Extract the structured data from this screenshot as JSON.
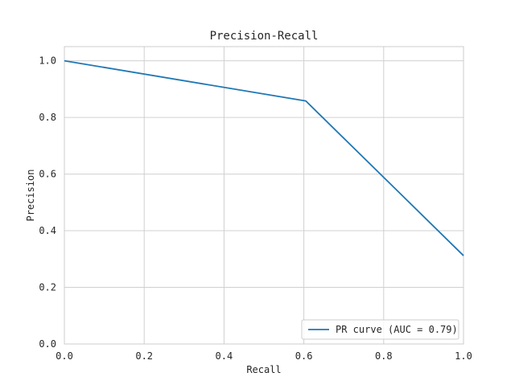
{
  "chart_data": {
    "type": "line",
    "title": "Precision-Recall",
    "xlabel": "Recall",
    "ylabel": "Precision",
    "xlim": [
      0.0,
      1.0
    ],
    "ylim": [
      0.0,
      1.05
    ],
    "xticks": [
      0.0,
      0.2,
      0.4,
      0.6,
      0.8,
      1.0
    ],
    "yticks": [
      0.0,
      0.2,
      0.4,
      0.6,
      0.8,
      1.0
    ],
    "xtick_labels": [
      "0.0",
      "0.2",
      "0.4",
      "0.6",
      "0.8",
      "1.0"
    ],
    "ytick_labels": [
      "0.0",
      "0.2",
      "0.4",
      "0.6",
      "0.8",
      "1.0"
    ],
    "grid": true,
    "legend_position": "lower-right",
    "series": [
      {
        "name": "PR curve (AUC = 0.79)",
        "color": "#1f77b4",
        "x": [
          0.0,
          0.605,
          1.0
        ],
        "y": [
          1.0,
          0.858,
          0.312
        ]
      }
    ]
  }
}
